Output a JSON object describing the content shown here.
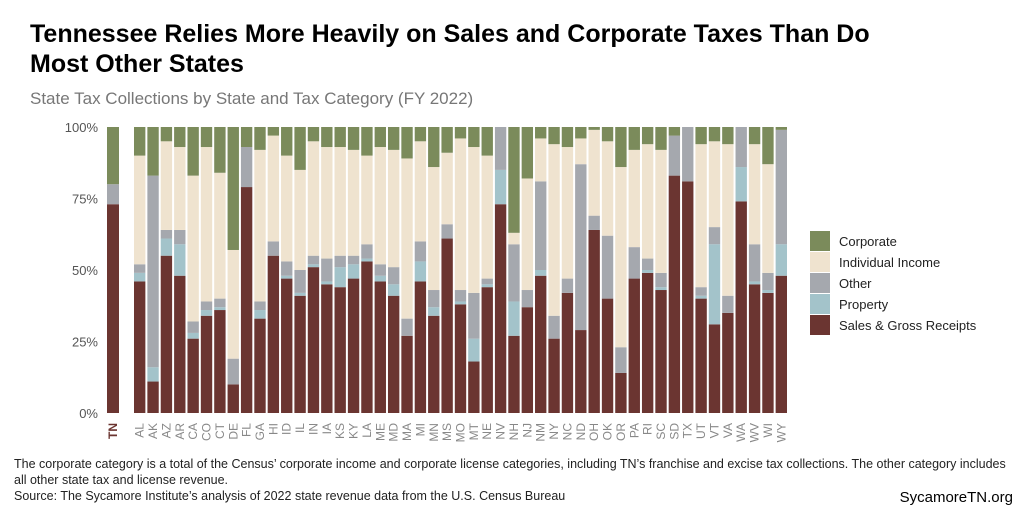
{
  "chart_data": {
    "type": "stacked-bar",
    "title": "Tennessee Relies More Heavily on Sales and Corporate Taxes Than Do Most Other States",
    "subtitle": "State Tax Collections by State and Tax Category (FY 2022)",
    "note": "The corporate category is a total of the Census’ corporate income and corporate license categories, including TN’s franchise and excise tax collections. The other category includes all other state tax and license revenue.",
    "source": "Source: The Sycamore Institute’s analysis of 2022 state revenue data from the U.S. Census Bureau",
    "brand": "SycamoreTN.org",
    "categories": [
      "TN",
      "AL",
      "AK",
      "AZ",
      "AR",
      "CA",
      "CO",
      "CT",
      "DE",
      "FL",
      "GA",
      "HI",
      "ID",
      "IL",
      "IN",
      "IA",
      "KS",
      "KY",
      "LA",
      "ME",
      "MD",
      "MA",
      "MI",
      "MN",
      "MS",
      "MO",
      "MT",
      "NE",
      "NV",
      "NH",
      "NJ",
      "NM",
      "NY",
      "NC",
      "ND",
      "OH",
      "OK",
      "OR",
      "PA",
      "RI",
      "SC",
      "SD",
      "TX",
      "UT",
      "VT",
      "VA",
      "WA",
      "WV",
      "WI",
      "WY"
    ],
    "series": [
      {
        "name": "Sales & Gross Receipts",
        "color": "#6b3531",
        "values": [
          73,
          46,
          11,
          55,
          48,
          26,
          34,
          36,
          10,
          79,
          33,
          55,
          47,
          41,
          51,
          45,
          44,
          47,
          53,
          46,
          41,
          27,
          46,
          34,
          61,
          38,
          18,
          44,
          73,
          27,
          37,
          48,
          26,
          42,
          29,
          64,
          40,
          14,
          47,
          49,
          43,
          83,
          81,
          40,
          31,
          35,
          74,
          45,
          42,
          48
        ]
      },
      {
        "name": "Property",
        "color": "#a3c3ca",
        "values": [
          0,
          3,
          5,
          6,
          11,
          2,
          2,
          1,
          0,
          0,
          3,
          0,
          1,
          1,
          1,
          1,
          7,
          5,
          1,
          2,
          4,
          0,
          7,
          3,
          0,
          1,
          8,
          1,
          12,
          12,
          0,
          2,
          0,
          0,
          0,
          0,
          0,
          0,
          0,
          1,
          1,
          0,
          0,
          1,
          28,
          0,
          12,
          1,
          1,
          11
        ]
      },
      {
        "name": "Other",
        "color": "#a5a8ae",
        "values": [
          7,
          3,
          67,
          3,
          5,
          4,
          3,
          3,
          9,
          14,
          3,
          5,
          5,
          8,
          3,
          8,
          4,
          3,
          5,
          4,
          6,
          6,
          7,
          6,
          5,
          4,
          16,
          2,
          15,
          20,
          6,
          31,
          8,
          5,
          58,
          5,
          22,
          9,
          11,
          4,
          5,
          14,
          19,
          3,
          6,
          6,
          14,
          13,
          6,
          40
        ]
      },
      {
        "name": "Individual Income",
        "color": "#efe3cf",
        "values": [
          0,
          38,
          0,
          31,
          29,
          51,
          54,
          44,
          38,
          0,
          53,
          37,
          37,
          35,
          40,
          39,
          38,
          37,
          31,
          41,
          41,
          56,
          35,
          43,
          25,
          53,
          51,
          43,
          0,
          4,
          39,
          15,
          60,
          46,
          9,
          30,
          33,
          63,
          34,
          40,
          43,
          0,
          0,
          50,
          30,
          53,
          0,
          35,
          38,
          0
        ]
      },
      {
        "name": "Corporate",
        "color": "#7b8b5b",
        "values": [
          20,
          10,
          17,
          5,
          7,
          17,
          7,
          16,
          43,
          7,
          8,
          3,
          10,
          15,
          5,
          7,
          7,
          8,
          10,
          7,
          8,
          11,
          5,
          14,
          9,
          4,
          7,
          10,
          0,
          37,
          18,
          4,
          6,
          7,
          4,
          1,
          5,
          14,
          8,
          6,
          8,
          3,
          0,
          6,
          5,
          6,
          0,
          6,
          13,
          1
        ]
      }
    ],
    "ylim": [
      0,
      100
    ],
    "yticks": [
      {
        "value": 0,
        "label": "0%"
      },
      {
        "value": 25,
        "label": "25%"
      },
      {
        "value": 50,
        "label": "50%"
      },
      {
        "value": 75,
        "label": "75%"
      },
      {
        "value": 100,
        "label": "100%"
      }
    ],
    "legend": "right"
  }
}
